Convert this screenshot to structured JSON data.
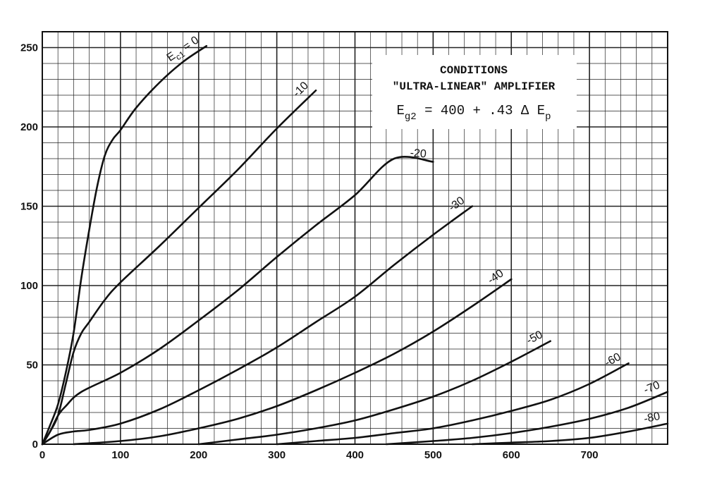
{
  "chart_data": {
    "type": "line",
    "title": "",
    "xlabel": "",
    "ylabel": "",
    "xlim": [
      0,
      800
    ],
    "ylim": [
      0,
      260
    ],
    "grid": true,
    "x_ticks": [
      0,
      100,
      200,
      300,
      400,
      500,
      600,
      700
    ],
    "y_ticks": [
      0,
      50,
      100,
      150,
      200,
      250
    ],
    "curve_label_prefix": "E",
    "curve_label_subscript": "c1",
    "conditions": {
      "heading": "CONDITIONS",
      "subheading": "\"ULTRA-LINEAR\" AMPLIFIER",
      "formula_lhs": "E",
      "formula_lhs_sub": "g2",
      "formula_rhs": " = 400 + .43 Δ E",
      "formula_rhs_sub": "p"
    },
    "series": [
      {
        "name": "= 0",
        "x": [
          0,
          10,
          20,
          30,
          40,
          50,
          60,
          70,
          80,
          90,
          100,
          120,
          150,
          180,
          210
        ],
        "y": [
          0,
          12,
          25,
          45,
          70,
          105,
          135,
          162,
          182,
          192,
          198,
          212,
          228,
          241,
          251
        ]
      },
      {
        "name": "-10",
        "x": [
          0,
          10,
          20,
          30,
          40,
          50,
          60,
          80,
          100,
          150,
          200,
          250,
          300,
          350
        ],
        "y": [
          0,
          8,
          18,
          38,
          58,
          70,
          77,
          91,
          102,
          125,
          149,
          173,
          199,
          223
        ]
      },
      {
        "name": "-20",
        "x": [
          0,
          10,
          20,
          30,
          50,
          100,
          150,
          200,
          250,
          300,
          350,
          400,
          450,
          500
        ],
        "y": [
          0,
          8,
          18,
          24,
          33,
          45,
          60,
          78,
          97,
          118,
          138,
          157,
          180,
          178
        ]
      },
      {
        "name": "-30",
        "x": [
          0,
          20,
          40,
          60,
          100,
          150,
          200,
          250,
          300,
          350,
          400,
          450,
          500,
          550
        ],
        "y": [
          0,
          6,
          8,
          9,
          13,
          22,
          34,
          47,
          61,
          77,
          93,
          113,
          132,
          150
        ]
      },
      {
        "name": "-40",
        "x": [
          40,
          100,
          150,
          200,
          250,
          300,
          350,
          400,
          450,
          500,
          550,
          600
        ],
        "y": [
          0,
          2,
          5,
          10,
          16,
          24,
          34,
          45,
          57,
          71,
          87,
          104
        ]
      },
      {
        "name": "-50",
        "x": [
          200,
          250,
          300,
          350,
          400,
          450,
          500,
          550,
          600,
          650
        ],
        "y": [
          0,
          3,
          6,
          10,
          15,
          22,
          30,
          40,
          52,
          65
        ]
      },
      {
        "name": "-60",
        "x": [
          300,
          350,
          400,
          450,
          500,
          550,
          600,
          650,
          700,
          750
        ],
        "y": [
          0,
          2,
          4,
          7,
          10,
          15,
          21,
          28,
          38,
          51
        ]
      },
      {
        "name": "-70",
        "x": [
          440,
          500,
          550,
          600,
          650,
          700,
          750,
          800
        ],
        "y": [
          0,
          2,
          4,
          7,
          11,
          16,
          23,
          33
        ]
      },
      {
        "name": "-80",
        "x": [
          550,
          600,
          650,
          700,
          750,
          800
        ],
        "y": [
          0,
          1,
          2,
          4,
          8,
          13
        ]
      }
    ]
  }
}
